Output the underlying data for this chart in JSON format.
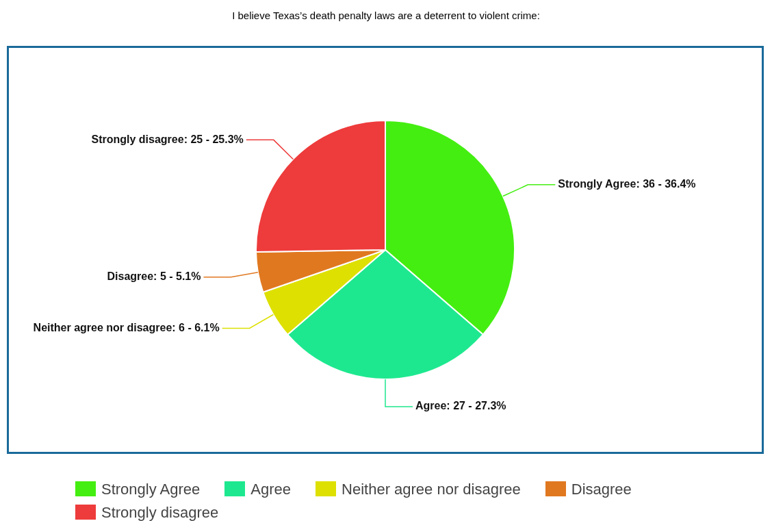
{
  "chart_data": {
    "type": "pie",
    "title": "I believe Texas’s death penalty laws are a deterrent to violent crime:",
    "categories": [
      "Strongly Agree",
      "Agree",
      "Neither agree nor disagree",
      "Disagree",
      "Strongly disagree"
    ],
    "values": [
      36,
      27,
      6,
      5,
      25
    ],
    "value_labels": [
      ": 36 - 36.4%",
      ": 27 - 27.3%",
      ": 6 - 6.1%",
      ": 5 - 5.1%",
      ": 25 - 25.3%"
    ],
    "colors": [
      "#44ee11",
      "#1ee88f",
      "#dde000",
      "#e07820",
      "#ee3b3b"
    ],
    "legend": "bottom"
  }
}
